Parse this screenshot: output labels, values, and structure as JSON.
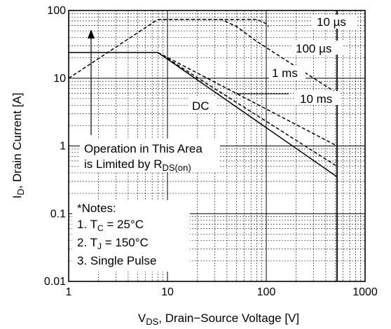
{
  "chart_data": {
    "type": "line",
    "title": "",
    "xlabel_main": "V",
    "xlabel_sub": "DS",
    "xlabel_rest": ", Drain−Source Voltage [V]",
    "ylabel_main": "I",
    "ylabel_sub": "D",
    "ylabel_rest": ", Drain Current [A]",
    "x_scale": "log",
    "y_scale": "log",
    "xlim": [
      1,
      1000
    ],
    "ylim": [
      0.01,
      100
    ],
    "grid": true,
    "x_ticks": [
      "1",
      "10",
      "100",
      "1000"
    ],
    "y_ticks": [
      "0.01",
      "0.1",
      "1",
      "10",
      "100"
    ],
    "series": [
      {
        "name": "10 µs",
        "style": "dashed",
        "x": [
          1,
          8,
          80,
          100,
          105
        ],
        "y": [
          10,
          74,
          74,
          64,
          58
        ]
      },
      {
        "name": "100 µs",
        "style": "dashed",
        "x": [
          8,
          35,
          50,
          80,
          520
        ],
        "y": [
          74,
          74,
          58,
          35,
          6
        ]
      },
      {
        "name": "1 ms",
        "style": "dashed",
        "x": [
          8,
          520
        ],
        "y": [
          24,
          1.0
        ]
      },
      {
        "name": "10 ms",
        "style": "dashed",
        "x": [
          8,
          520
        ],
        "y": [
          24,
          0.5
        ]
      },
      {
        "name": "DC",
        "style": "solid",
        "x": [
          1,
          8,
          520
        ],
        "y": [
          24,
          24,
          0.35
        ]
      }
    ],
    "vds_limit_line": {
      "x": 520,
      "y": [
        0.01,
        100
      ]
    },
    "annotations": {
      "area_line1": "Operation in This Area",
      "area_line2_main": "is Limited by R",
      "area_line2_sub": "DS(on)",
      "notes_title": "*Notes:",
      "note1_main": "1. T",
      "note1_sub": "C",
      "note1_rest": " = 25°C",
      "note2_main": "2. T",
      "note2_sub": "J",
      "note2_rest": " = 150°C",
      "note3": "3. Single Pulse"
    }
  }
}
